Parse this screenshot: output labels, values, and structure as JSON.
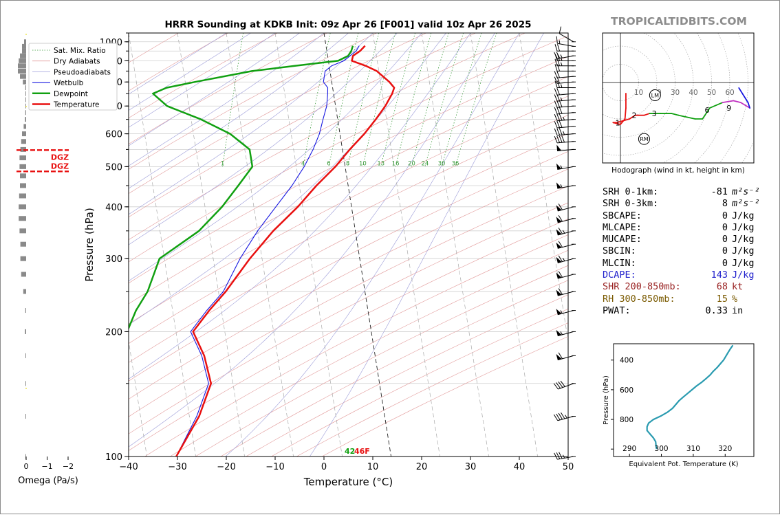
{
  "window": {
    "title": "HRRR Sounding at KDKB Init: 09z Apr 26 [F001] valid 10z Apr 26 2025",
    "brand": "TROPICALTIDBITS.COM"
  },
  "skewt": {
    "xlabel": "Temperature (°C)",
    "ylabel": "Pressure (hPa)",
    "xlim": [
      -40,
      50
    ],
    "ylim": [
      1050,
      100
    ],
    "x_ticks": [
      "−40",
      "−30",
      "−20",
      "−10",
      "0",
      "10",
      "20",
      "30",
      "40",
      "50"
    ],
    "y_ticks": [
      "100",
      "200",
      "300",
      "400",
      "500",
      "600",
      "700",
      "800",
      "900",
      "1000"
    ],
    "mixing_ratio_labels": [
      "1",
      "4",
      "6",
      "8",
      "10",
      "13",
      "16",
      "20",
      "24",
      "30",
      "36"
    ],
    "legend": [
      "Sat. Mix. Ratio",
      "Dry Adiabats",
      "Pseudoadiabats",
      "Wetbulb",
      "Dewpoint",
      "Temperature"
    ],
    "surface_dewpoint_label": "42",
    "surface_temp_label": "46F",
    "colors": {
      "temperature": "#e81010",
      "dewpoint": "#11a011",
      "wetbulb": "#1515e0"
    }
  },
  "chart_data": {
    "type": "line",
    "title": "HRRR Sounding at KDKB Init: 09z Apr 26 [F001] valid 10z Apr 26 2025",
    "xlabel": "Temperature (°C)",
    "ylabel": "Pressure (hPa)",
    "pressure_hPa": [
      978,
      950,
      925,
      900,
      875,
      850,
      800,
      775,
      750,
      700,
      650,
      600,
      550,
      500,
      450,
      400,
      350,
      300,
      250,
      225,
      200,
      175,
      150,
      125,
      100
    ],
    "series": [
      {
        "name": "Temperature",
        "values": [
          8.0,
          6.8,
          5.2,
          4.8,
          7.5,
          9.6,
          11.8,
          12.6,
          12.0,
          10.2,
          7.8,
          5.0,
          1.5,
          -2.0,
          -6.5,
          -11.0,
          -16.8,
          -22.5,
          -28.5,
          -32.5,
          -36.5,
          -35.0,
          -34.5,
          -38.0,
          -44.0
        ]
      },
      {
        "name": "Dewpoint",
        "values": [
          5.5,
          5.0,
          4.2,
          2.0,
          -7.0,
          -16.0,
          -28.0,
          -34.0,
          -37.0,
          -34.5,
          -28.0,
          -22.5,
          -19.0,
          -19.0,
          -22.5,
          -26.5,
          -32.0,
          -41.0,
          -44.5,
          -47.5,
          -50.0,
          -53.0,
          -59.0,
          -62.0,
          -65.0
        ]
      },
      {
        "name": "Wetbulb",
        "values": [
          6.8,
          6.0,
          4.6,
          3.2,
          0.5,
          -1.0,
          -1.7,
          -1.0,
          -1.2,
          -1.8,
          -3.0,
          -4.2,
          -6.0,
          -8.4,
          -11.5,
          -15.5,
          -20.0,
          -24.5,
          -29.0,
          -33.0,
          -37.0,
          -35.5,
          -35.0,
          -38.5,
          -44.0
        ]
      }
    ],
    "omega_panel": {
      "xlabel": "Omega (Pa/s)",
      "x_ticks": [
        "0",
        "−1",
        "−2"
      ],
      "dgz_label": "DGZ",
      "dgz_pressures_hPa": [
        487,
        548
      ],
      "pressure_hPa": [
        1000,
        975,
        950,
        925,
        900,
        875,
        850,
        825,
        800,
        775,
        750,
        725,
        700,
        675,
        650,
        625,
        600,
        575,
        550,
        525,
        500,
        475,
        450,
        425,
        400,
        375,
        350,
        325,
        300,
        275,
        250,
        225,
        200,
        175,
        150,
        125,
        100
      ],
      "values": [
        -0.05,
        -0.1,
        -0.1,
        -0.15,
        -0.18,
        -0.2,
        -0.2,
        -0.15,
        -0.08,
        -0.02,
        -0.01,
        -0.01,
        -0.01,
        -0.02,
        -0.03,
        -0.06,
        -0.1,
        -0.12,
        -0.14,
        -0.16,
        -0.16,
        -0.15,
        -0.15,
        -0.17,
        -0.18,
        -0.18,
        -0.16,
        -0.14,
        -0.14,
        -0.12,
        -0.07,
        -0.02,
        -0.03,
        -0.01,
        -0.01,
        -0.01,
        -0.01
      ]
    },
    "hodograph": {
      "caption": "Hodograph (wind in kt, height in km)",
      "ring_labels": [
        "10",
        "20",
        "30",
        "40",
        "50",
        "60"
      ],
      "height_labels": [
        "1",
        "2",
        "3",
        "6",
        "9"
      ],
      "markers": [
        "LM",
        "RM"
      ],
      "u_kt": [
        3,
        3,
        2.5,
        0,
        -4,
        -2,
        5,
        8,
        13,
        16,
        22,
        28,
        32,
        41,
        45,
        49,
        56,
        62,
        66,
        71,
        70,
        65
      ],
      "v_kt": [
        -6,
        -14,
        -20,
        -23,
        -22,
        -22,
        -20,
        -18,
        -18,
        -17,
        -17,
        -17,
        -18,
        -20,
        -20,
        -14,
        -11,
        -10,
        -11,
        -14,
        -11,
        -3
      ],
      "segment_colors": [
        "#e81010",
        "#e81010",
        "#e81010",
        "#e81010",
        "#e81010",
        "#e81010",
        "#e81010",
        "#e81010",
        "#e81010",
        "#11a011",
        "#11a011",
        "#11a011",
        "#11a011",
        "#11a011",
        "#11a011",
        "#11a011",
        "#c030c0",
        "#c030c0",
        "#c030c0",
        "#1515e0",
        "#1515e0"
      ],
      "storm_motion": {
        "LM": [
          19,
          -7
        ],
        "RM": [
          13,
          -31
        ]
      }
    },
    "theta_e_panel": {
      "xlabel": "Equivalent Pot. Temperature (K)",
      "ylabel": "Pressure (hPa)",
      "x_ticks": [
        "290",
        "300",
        "310",
        "320"
      ],
      "y_ticks": [
        "400",
        "600",
        "800"
      ],
      "pressure_hPa": [
        1000,
        975,
        950,
        925,
        900,
        875,
        850,
        825,
        800,
        775,
        750,
        725,
        700,
        675,
        650,
        625,
        600,
        575,
        550,
        525,
        500,
        475,
        450,
        425,
        400,
        375,
        350,
        325,
        300
      ],
      "values": [
        298.5,
        298.3,
        298.2,
        297.5,
        296.5,
        295.5,
        295.5,
        296,
        297.5,
        300,
        302,
        303.5,
        304.5,
        305.5,
        306.8,
        308.2,
        309.6,
        311,
        312.6,
        314,
        315.3,
        316.3,
        317.5,
        318.5,
        319.5,
        320.2,
        320.9,
        321.6,
        322.4
      ],
      "color": "#2a9bb0"
    }
  },
  "stats": [
    {
      "label": "SRH 0-1km:",
      "value": "-81",
      "unit": "m²s⁻²",
      "color": "#000000"
    },
    {
      "label": "SRH 0-3km:",
      "value": "8",
      "unit": "m²s⁻²",
      "color": "#000000"
    },
    {
      "label": "SBCAPE:",
      "value": "0",
      "unit": "J/kg",
      "color": "#000000"
    },
    {
      "label": "MLCAPE:",
      "value": "0",
      "unit": "J/kg",
      "color": "#000000"
    },
    {
      "label": "MUCAPE:",
      "value": "0",
      "unit": "J/kg",
      "color": "#000000"
    },
    {
      "label": "SBCIN:",
      "value": "0",
      "unit": "J/kg",
      "color": "#000000"
    },
    {
      "label": "MLCIN:",
      "value": "0",
      "unit": "J/kg",
      "color": "#000000"
    },
    {
      "label": "DCAPE:",
      "value": "143",
      "unit": "J/kg",
      "color": "#2222cc"
    },
    {
      "label": "SHR 200-850mb:",
      "value": "68",
      "unit": "kt",
      "color": "#992222"
    },
    {
      "label": "RH 300-850mb:",
      "value": "15",
      "unit": "%",
      "color": "#7a5a00"
    },
    {
      "label": "PWAT:",
      "value": "0.33",
      "unit": "in",
      "color": "#000000"
    }
  ],
  "wind_profile": {
    "pressure_hPa": [
      1000,
      975,
      950,
      925,
      900,
      875,
      850,
      825,
      800,
      775,
      750,
      725,
      700,
      675,
      650,
      625,
      600,
      575,
      550,
      500,
      450,
      400,
      375,
      350,
      325,
      300,
      275,
      250,
      225,
      200,
      175,
      150,
      125,
      100
    ],
    "dir_deg": [
      300,
      280,
      270,
      260,
      270,
      270,
      270,
      265,
      265,
      270,
      265,
      265,
      265,
      265,
      265,
      265,
      265,
      265,
      265,
      260,
      260,
      255,
      255,
      255,
      255,
      255,
      255,
      255,
      255,
      255,
      255,
      250,
      255,
      260
    ],
    "speed_kt": [
      10,
      15,
      20,
      25,
      25,
      25,
      20,
      20,
      20,
      25,
      20,
      25,
      30,
      30,
      35,
      30,
      35,
      40,
      50,
      55,
      55,
      60,
      60,
      65,
      60,
      65,
      60,
      60,
      55,
      55,
      60,
      40,
      45,
      35
    ]
  }
}
